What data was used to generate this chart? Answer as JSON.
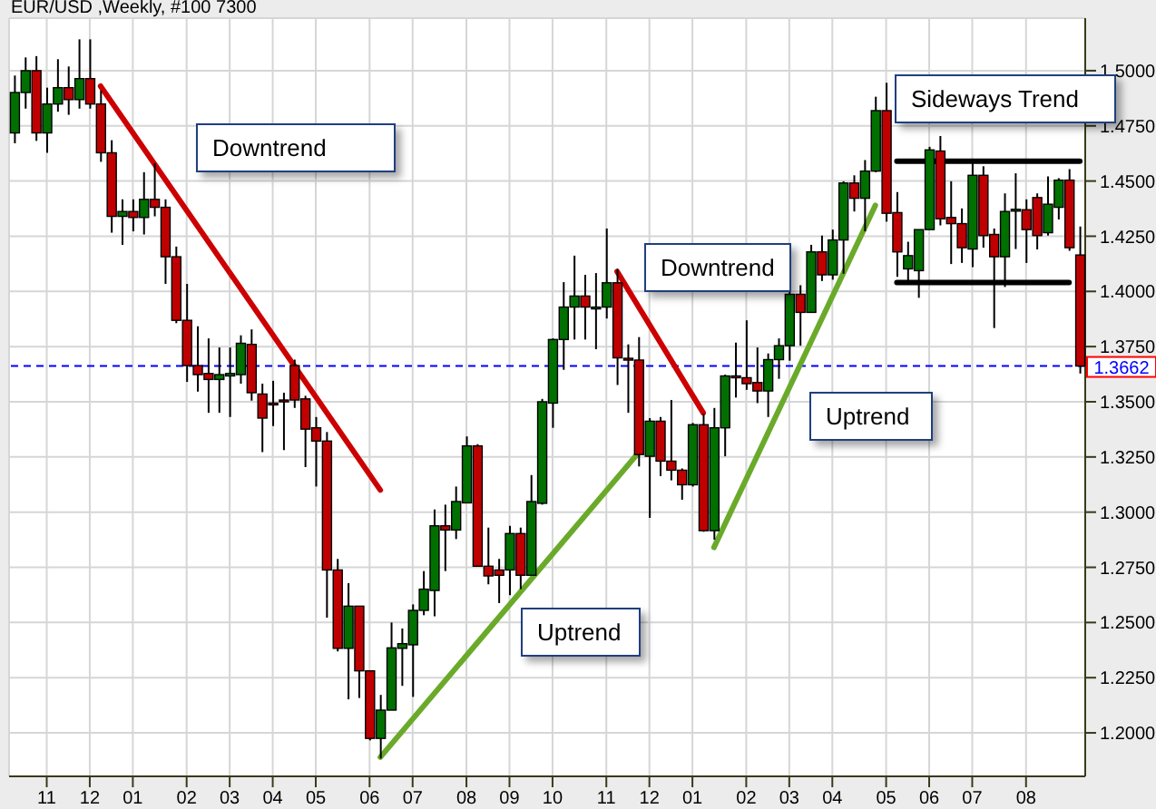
{
  "chart_data": {
    "type": "candlestick",
    "title": "EUR/USD ,Weekly, #100 7300",
    "categories": [
      null,
      null,
      null,
      "11",
      null,
      null,
      null,
      "12",
      null,
      null,
      null,
      "01",
      null,
      null,
      null,
      null,
      "02",
      null,
      null,
      null,
      "03",
      null,
      null,
      null,
      "04",
      null,
      null,
      null,
      "05",
      null,
      null,
      null,
      null,
      "06",
      null,
      null,
      null,
      "07",
      null,
      null,
      null,
      null,
      "08",
      null,
      null,
      null,
      "09",
      null,
      null,
      null,
      "10",
      null,
      null,
      null,
      null,
      "11",
      null,
      null,
      null,
      "12",
      null,
      null,
      null,
      "01",
      null,
      null,
      null,
      null,
      "02",
      null,
      null,
      null,
      "03",
      null,
      null,
      null,
      "04",
      null,
      null,
      null,
      null,
      "05",
      null,
      null,
      null,
      "06",
      null,
      null,
      null,
      "07",
      null,
      null,
      null,
      null,
      "08",
      null,
      null,
      null,
      null,
      null
    ],
    "ohlc": [
      [
        1.4718,
        1.4978,
        1.4671,
        1.4901
      ],
      [
        1.4901,
        1.506,
        1.4828,
        1.5
      ],
      [
        1.5,
        1.5066,
        1.4682,
        1.4718
      ],
      [
        1.4718,
        1.4923,
        1.4628,
        1.4849
      ],
      [
        1.4849,
        1.5052,
        1.4814,
        1.4923
      ],
      [
        1.4923,
        1.5019,
        1.48,
        1.4869
      ],
      [
        1.4869,
        1.5142,
        1.4828,
        1.4964
      ],
      [
        1.4964,
        1.5142,
        1.4828,
        1.4849
      ],
      [
        1.4849,
        1.491,
        1.4587,
        1.4628
      ],
      [
        1.4628,
        1.4685,
        1.4266,
        1.434
      ],
      [
        1.434,
        1.4417,
        1.4211,
        1.4362
      ],
      [
        1.4362,
        1.4417,
        1.4272,
        1.4335
      ],
      [
        1.4335,
        1.454,
        1.4258,
        1.4417
      ],
      [
        1.4417,
        1.4581,
        1.434,
        1.4381
      ],
      [
        1.4381,
        1.4417,
        1.4034,
        1.4157
      ],
      [
        1.4157,
        1.4203,
        1.3856,
        1.3869
      ],
      [
        1.3869,
        1.4034,
        1.359,
        1.3664
      ],
      [
        1.3664,
        1.3842,
        1.3546,
        1.3623
      ],
      [
        1.3628,
        1.3787,
        1.345,
        1.3601
      ],
      [
        1.3601,
        1.3746,
        1.345,
        1.3623
      ],
      [
        1.3617,
        1.3746,
        1.3431,
        1.3628
      ],
      [
        1.3623,
        1.3801,
        1.3582,
        1.3765
      ],
      [
        1.376,
        1.3828,
        1.3505,
        1.3541
      ],
      [
        1.3535,
        1.3582,
        1.3272,
        1.3426
      ],
      [
        1.3494,
        1.3595,
        1.339,
        1.3491
      ],
      [
        1.3508,
        1.3541,
        1.3281,
        1.3505
      ],
      [
        1.3664,
        1.3691,
        1.3472,
        1.3508
      ],
      [
        1.3513,
        1.3527,
        1.3204,
        1.3376
      ],
      [
        1.3382,
        1.3431,
        1.3116,
        1.3322
      ],
      [
        1.3322,
        1.3363,
        1.2522,
        1.2738
      ],
      [
        1.2738,
        1.2788,
        1.2369,
        1.2383
      ],
      [
        1.2383,
        1.2678,
        1.2152,
        1.2574
      ],
      [
        1.2574,
        1.2574,
        1.2158,
        1.2281
      ],
      [
        1.2281,
        1.2281,
        1.1966,
        1.1975
      ],
      [
        1.1975,
        1.2172,
        1.1884,
        1.2103
      ],
      [
        1.2103,
        1.25,
        1.2103,
        1.2385
      ],
      [
        1.2383,
        1.2473,
        1.2213,
        1.2404
      ],
      [
        1.2399,
        1.2582,
        1.2163,
        1.2555
      ],
      [
        1.2555,
        1.2733,
        1.2533,
        1.2651
      ],
      [
        1.2645,
        1.3012,
        1.2528,
        1.2938
      ],
      [
        1.2938,
        1.3034,
        1.2733,
        1.2919
      ],
      [
        1.2919,
        1.3116,
        1.2878,
        1.3048
      ],
      [
        1.3042,
        1.3343,
        1.3042,
        1.33
      ],
      [
        1.33,
        1.3308,
        1.2755,
        1.2755
      ],
      [
        1.2755,
        1.293,
        1.2673,
        1.2711
      ],
      [
        1.2738,
        1.2788,
        1.2588,
        1.2714
      ],
      [
        1.2738,
        1.2938,
        1.2624,
        1.2903
      ],
      [
        1.2903,
        1.293,
        1.2651,
        1.2714
      ],
      [
        1.2714,
        1.3168,
        1.2714,
        1.3048
      ],
      [
        1.304,
        1.3513,
        1.3034,
        1.35
      ],
      [
        1.3494,
        1.3787,
        1.3382,
        1.3782
      ],
      [
        1.3782,
        1.4042,
        1.3645,
        1.3929
      ],
      [
        1.3929,
        1.4162,
        1.3782,
        1.3979
      ],
      [
        1.3979,
        1.4075,
        1.3782,
        1.3929
      ],
      [
        1.3929,
        1.4083,
        1.3738,
        1.3929
      ],
      [
        1.3929,
        1.4285,
        1.3877,
        1.4039
      ],
      [
        1.4039,
        1.4102,
        1.3576,
        1.3699
      ],
      [
        1.3697,
        1.376,
        1.345,
        1.3697
      ],
      [
        1.3689,
        1.3793,
        1.3207,
        1.3261
      ],
      [
        1.3253,
        1.3426,
        1.2974,
        1.3412
      ],
      [
        1.3412,
        1.3431,
        1.3163,
        1.3231
      ],
      [
        1.3231,
        1.3508,
        1.3144,
        1.319
      ],
      [
        1.319,
        1.3198,
        1.3056,
        1.3124
      ],
      [
        1.3124,
        1.3404,
        1.3116,
        1.3396
      ],
      [
        1.3396,
        1.3445,
        1.2911,
        1.2916
      ],
      [
        1.2916,
        1.3472,
        1.2875,
        1.3382
      ],
      [
        1.3382,
        1.3623,
        1.3253,
        1.3617
      ],
      [
        1.3617,
        1.3768,
        1.3519,
        1.3615
      ],
      [
        1.3609,
        1.3869,
        1.3554,
        1.3582
      ],
      [
        1.3587,
        1.3746,
        1.3494,
        1.3549
      ],
      [
        1.3549,
        1.3719,
        1.3431,
        1.3691
      ],
      [
        1.3691,
        1.3787,
        1.3604,
        1.3754
      ],
      [
        1.3754,
        1.4006,
        1.3686,
        1.3987
      ],
      [
        1.3987,
        1.4028,
        1.3754,
        1.3905
      ],
      [
        1.3905,
        1.4211,
        1.3905,
        1.4179
      ],
      [
        1.4179,
        1.4253,
        1.4047,
        1.4075
      ],
      [
        1.4075,
        1.428,
        1.4053,
        1.4233
      ],
      [
        1.4233,
        1.4499,
        1.408,
        1.4491
      ],
      [
        1.4491,
        1.4526,
        1.4362,
        1.4422
      ],
      [
        1.4422,
        1.4595,
        1.4272,
        1.4545
      ],
      [
        1.4545,
        1.4882,
        1.454,
        1.4819
      ],
      [
        1.4819,
        1.4945,
        1.4316,
        1.4354
      ],
      [
        1.4357,
        1.445,
        1.4066,
        1.4179
      ],
      [
        1.4102,
        1.4225,
        1.4042,
        1.4162
      ],
      [
        1.4094,
        1.428,
        1.3971,
        1.428
      ],
      [
        1.428,
        1.4655,
        1.428,
        1.4641
      ],
      [
        1.4636,
        1.4704,
        1.4299,
        1.4329
      ],
      [
        1.4335,
        1.4499,
        1.4124,
        1.4307
      ],
      [
        1.4307,
        1.4376,
        1.4129,
        1.4198
      ],
      [
        1.4192,
        1.4595,
        1.411,
        1.4526
      ],
      [
        1.4526,
        1.4567,
        1.4198,
        1.4253
      ],
      [
        1.4258,
        1.4285,
        1.3834,
        1.4157
      ],
      [
        1.4157,
        1.4444,
        1.402,
        1.4362
      ],
      [
        1.4367,
        1.4535,
        1.4192,
        1.4372
      ],
      [
        1.437,
        1.4417,
        1.4129,
        1.428
      ],
      [
        1.4425,
        1.4444,
        1.419,
        1.4253
      ],
      [
        1.4266,
        1.4521,
        1.4253,
        1.4395
      ],
      [
        1.4381,
        1.4513,
        1.4326,
        1.4504
      ],
      [
        1.4504,
        1.4554,
        1.4184,
        1.4198
      ],
      [
        1.4165,
        1.4294,
        1.3628,
        1.3662
      ]
    ],
    "colors": [
      "#007000",
      "#007000",
      "#c00000",
      "#007000",
      "#007000",
      "#c00000",
      "#007000",
      "#c00000",
      "#c00000",
      "#c00000",
      "#007000",
      "#c00000",
      "#007000",
      "#c00000",
      "#c00000",
      "#c00000",
      "#c00000",
      "#c00000",
      "#c00000",
      "#007000",
      "#007000",
      "#007000",
      "#c00000",
      "#c00000",
      "#c00000",
      "#c00000",
      "#c00000",
      "#c00000",
      "#c00000",
      "#c00000",
      "#c00000",
      "#007000",
      "#c00000",
      "#c00000",
      "#007000",
      "#007000",
      "#007000",
      "#007000",
      "#007000",
      "#007000",
      "#c00000",
      "#007000",
      "#007000",
      "#c00000",
      "#c00000",
      "#c00000",
      "#007000",
      "#c00000",
      "#007000",
      "#007000",
      "#007000",
      "#007000",
      "#007000",
      "#c00000",
      "#007000",
      "#007000",
      "#c00000",
      "#c00000",
      "#c00000",
      "#007000",
      "#c00000",
      "#c00000",
      "#c00000",
      "#007000",
      "#c00000",
      "#007000",
      "#007000",
      "#c00000",
      "#c00000",
      "#c00000",
      "#007000",
      "#007000",
      "#007000",
      "#c00000",
      "#007000",
      "#c00000",
      "#007000",
      "#007000",
      "#c00000",
      "#007000",
      "#007000",
      "#c00000",
      "#c00000",
      "#007000",
      "#007000",
      "#007000",
      "#c00000",
      "#c00000",
      "#c00000",
      "#007000",
      "#c00000",
      "#c00000",
      "#007000",
      "#007000",
      "#c00000",
      "#c00000",
      "#007000",
      "#007000",
      "#c00000",
      "#c00000"
    ],
    "series": [
      {
        "type": "line",
        "color": "#cc0000",
        "values": [
          null,
          null,
          null,
          null,
          null,
          null,
          null,
          null,
          1.493,
          null,
          null,
          null,
          null,
          null,
          null,
          null,
          null,
          null,
          null,
          null,
          null,
          null,
          null,
          null,
          null,
          null,
          null,
          null,
          null,
          null,
          null,
          null,
          null,
          null,
          1.31,
          null,
          null,
          null,
          null,
          null,
          null,
          null,
          null,
          null,
          null,
          null,
          null,
          null,
          null,
          null,
          null,
          null,
          null,
          null,
          null,
          null,
          null,
          null,
          null,
          null,
          null,
          null,
          null,
          null,
          null,
          null,
          null,
          null,
          null,
          null,
          null,
          null,
          null,
          null,
          null,
          null,
          null,
          null,
          null,
          null,
          null,
          null,
          null,
          null,
          null,
          null,
          null,
          null,
          null,
          null,
          null,
          null,
          null,
          null,
          null,
          null,
          null,
          null,
          null,
          null
        ]
      },
      {
        "type": "line",
        "color": "#cc0000",
        "values": [
          null,
          null,
          null,
          null,
          null,
          null,
          null,
          null,
          null,
          null,
          null,
          null,
          null,
          null,
          null,
          null,
          null,
          null,
          null,
          null,
          null,
          null,
          null,
          null,
          null,
          null,
          null,
          null,
          null,
          null,
          null,
          null,
          null,
          null,
          null,
          null,
          null,
          null,
          null,
          null,
          null,
          null,
          null,
          null,
          null,
          null,
          null,
          null,
          null,
          null,
          null,
          null,
          null,
          null,
          null,
          null,
          1.409,
          null,
          null,
          null,
          null,
          null,
          null,
          null,
          1.345,
          null,
          null,
          null,
          null,
          null,
          null,
          null,
          null,
          null,
          null,
          null,
          null,
          null,
          null,
          null,
          null,
          null,
          null,
          null,
          null,
          null,
          null,
          null,
          null,
          null,
          null,
          null,
          null,
          null,
          null,
          null,
          null,
          null,
          null,
          null
        ]
      },
      {
        "type": "line",
        "color": "#6aaa2a",
        "values": [
          null,
          null,
          null,
          null,
          null,
          null,
          null,
          null,
          null,
          null,
          null,
          null,
          null,
          null,
          null,
          null,
          null,
          null,
          null,
          null,
          null,
          null,
          null,
          null,
          null,
          null,
          null,
          null,
          null,
          null,
          null,
          null,
          null,
          null,
          1.189,
          null,
          null,
          null,
          null,
          null,
          null,
          null,
          null,
          null,
          null,
          null,
          null,
          null,
          null,
          null,
          null,
          null,
          null,
          null,
          null,
          null,
          null,
          null,
          1.327,
          null,
          null,
          null,
          null,
          null,
          null,
          null,
          null,
          null,
          null,
          null,
          null,
          null,
          null,
          null,
          null,
          null,
          null,
          null,
          null,
          null,
          null,
          null,
          null,
          null,
          null,
          null,
          null,
          null,
          null,
          null,
          null,
          null,
          null,
          null,
          null,
          null,
          null,
          null,
          null,
          null
        ]
      },
      {
        "type": "line",
        "color": "#6aaa2a",
        "values": [
          null,
          null,
          null,
          null,
          null,
          null,
          null,
          null,
          null,
          null,
          null,
          null,
          null,
          null,
          null,
          null,
          null,
          null,
          null,
          null,
          null,
          null,
          null,
          null,
          null,
          null,
          null,
          null,
          null,
          null,
          null,
          null,
          null,
          null,
          null,
          null,
          null,
          null,
          null,
          null,
          null,
          null,
          null,
          null,
          null,
          null,
          null,
          null,
          null,
          null,
          null,
          null,
          null,
          null,
          null,
          null,
          null,
          null,
          null,
          null,
          null,
          null,
          null,
          null,
          null,
          1.284,
          null,
          null,
          null,
          null,
          null,
          null,
          null,
          null,
          null,
          null,
          null,
          null,
          null,
          null,
          1.439,
          null,
          null,
          null,
          null,
          null,
          null,
          null,
          null,
          null,
          null,
          null,
          null,
          null,
          null,
          null,
          null,
          null,
          null,
          null
        ]
      },
      {
        "type": "line",
        "color": "#000000",
        "values": [
          null,
          null,
          null,
          null,
          null,
          null,
          null,
          null,
          null,
          null,
          null,
          null,
          null,
          null,
          null,
          null,
          null,
          null,
          null,
          null,
          null,
          null,
          null,
          null,
          null,
          null,
          null,
          null,
          null,
          null,
          null,
          null,
          null,
          null,
          null,
          null,
          null,
          null,
          null,
          null,
          null,
          null,
          null,
          null,
          null,
          null,
          null,
          null,
          null,
          null,
          null,
          null,
          null,
          null,
          null,
          null,
          null,
          null,
          null,
          null,
          null,
          null,
          null,
          null,
          null,
          null,
          null,
          null,
          null,
          null,
          null,
          null,
          null,
          null,
          null,
          null,
          null,
          null,
          null,
          null,
          null,
          null,
          1.459,
          null,
          null,
          null,
          null,
          null,
          null,
          null,
          null,
          null,
          null,
          null,
          null,
          null,
          null,
          null,
          null,
          1.459
        ]
      },
      {
        "type": "line",
        "color": "#000000",
        "values": [
          null,
          null,
          null,
          null,
          null,
          null,
          null,
          null,
          null,
          null,
          null,
          null,
          null,
          null,
          null,
          null,
          null,
          null,
          null,
          null,
          null,
          null,
          null,
          null,
          null,
          null,
          null,
          null,
          null,
          null,
          null,
          null,
          null,
          null,
          null,
          null,
          null,
          null,
          null,
          null,
          null,
          null,
          null,
          null,
          null,
          null,
          null,
          null,
          null,
          null,
          null,
          null,
          null,
          null,
          null,
          null,
          null,
          null,
          null,
          null,
          null,
          null,
          null,
          null,
          null,
          null,
          null,
          null,
          null,
          null,
          null,
          null,
          null,
          null,
          null,
          null,
          null,
          null,
          null,
          null,
          null,
          null,
          1.404,
          null,
          null,
          null,
          null,
          null,
          null,
          null,
          null,
          null,
          null,
          null,
          null,
          null,
          null,
          null,
          1.404,
          null
        ]
      }
    ],
    "ylim": [
      1.1803,
      1.5238
    ],
    "yticks": [
      {
        "value": 1.2,
        "label": "1.2000"
      },
      {
        "value": 1.225,
        "label": "1.2250"
      },
      {
        "value": 1.25,
        "label": "1.2500"
      },
      {
        "value": 1.275,
        "label": "1.2750"
      },
      {
        "value": 1.3,
        "label": "1.3000"
      },
      {
        "value": 1.325,
        "label": "1.3250"
      },
      {
        "value": 1.35,
        "label": "1.3500"
      },
      {
        "value": 1.375,
        "label": "1.3750"
      },
      {
        "value": 1.4,
        "label": "1.4000"
      },
      {
        "value": 1.425,
        "label": "1.4250"
      },
      {
        "value": 1.45,
        "label": "1.4500"
      },
      {
        "value": 1.475,
        "label": "1.4750"
      },
      {
        "value": 1.5,
        "label": "1.5000"
      }
    ],
    "grid": true,
    "ref_lines": [
      {
        "axis": "y",
        "value": 1.3662,
        "label": "1.3662",
        "color": "#0000ff",
        "line_style": "dashed"
      }
    ],
    "annotations": [
      "Downtrend",
      "Downtrend",
      "Uptrend",
      "Uptrend",
      "Sideways Trend"
    ]
  }
}
